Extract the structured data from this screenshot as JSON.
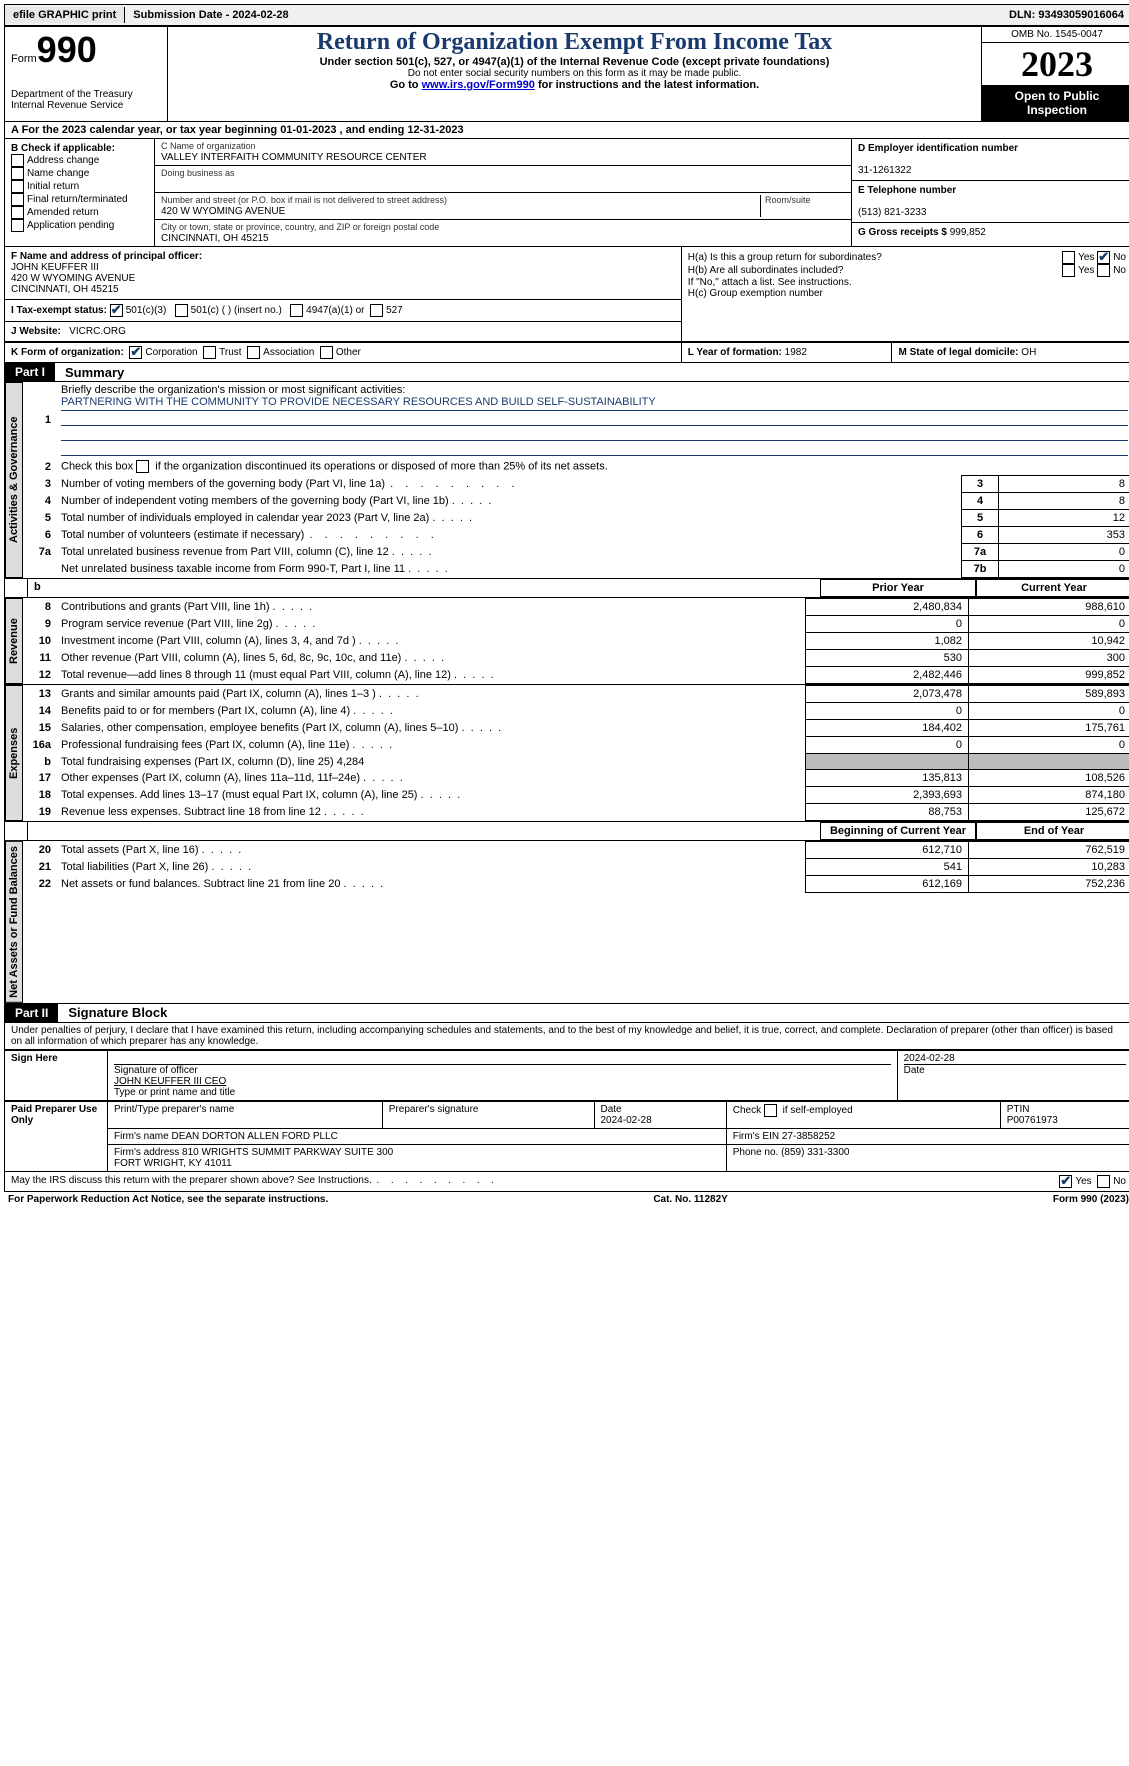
{
  "topbar": {
    "efile": "efile GRAPHIC print",
    "submission_label": "Submission Date - 2024-02-28",
    "dln_label": "DLN: 93493059016064"
  },
  "header": {
    "form_label": "Form",
    "form_num": "990",
    "dept": "Department of the Treasury",
    "irs": "Internal Revenue Service",
    "title": "Return of Organization Exempt From Income Tax",
    "subtitle": "Under section 501(c), 527, or 4947(a)(1) of the Internal Revenue Code (except private foundations)",
    "ssn_note": "Do not enter social security numbers on this form as it may be made public.",
    "goto_pre": "Go to ",
    "goto_link": "www.irs.gov/Form990",
    "goto_post": " for instructions and the latest information.",
    "omb": "OMB No. 1545-0047",
    "year": "2023",
    "open": "Open to Public Inspection"
  },
  "section_a": {
    "text": "A For the 2023 calendar year, or tax year beginning 01-01-2023    , and ending 12-31-2023"
  },
  "box_b": {
    "header": "B Check if applicable:",
    "items": [
      "Address change",
      "Name change",
      "Initial return",
      "Final return/terminated",
      "Amended return",
      "Application pending"
    ]
  },
  "box_c": {
    "name_lbl": "C Name of organization",
    "name": "VALLEY INTERFAITH COMMUNITY RESOURCE CENTER",
    "dba_lbl": "Doing business as",
    "street_lbl": "Number and street (or P.O. box if mail is not delivered to street address)",
    "room_lbl": "Room/suite",
    "street": "420 W WYOMING AVENUE",
    "city_lbl": "City or town, state or province, country, and ZIP or foreign postal code",
    "city": "CINCINNATI, OH  45215"
  },
  "box_d": {
    "ein_lbl": "D Employer identification number",
    "ein": "31-1261322",
    "tel_lbl": "E Telephone number",
    "tel": "(513) 821-3233",
    "gross_lbl": "G Gross receipts $ ",
    "gross": "999,852"
  },
  "box_f": {
    "lbl": "F  Name and address of principal officer:",
    "name": "JOHN KEUFFER III",
    "addr1": "420 W WYOMING AVENUE",
    "addr2": "CINCINNATI, OH  45215"
  },
  "box_h": {
    "a_lbl": "H(a)  Is this a group return for subordinates?",
    "b_lbl": "H(b)  Are all subordinates included?",
    "b_note": "If \"No,\" attach a list. See instructions.",
    "c_lbl": "H(c)  Group exemption number "
  },
  "row_i": {
    "lbl": "I    Tax-exempt status:",
    "opt1": "501(c)(3)",
    "opt2": "501(c) (   ) (insert no.)",
    "opt3": "4947(a)(1) or",
    "opt4": "527"
  },
  "row_j": {
    "lbl": "J    Website: ",
    "val": "VICRC.ORG"
  },
  "row_k": {
    "lbl": "K Form of organization:",
    "opts": [
      "Corporation",
      "Trust",
      "Association",
      "Other"
    ],
    "l_lbl": "L Year of formation: ",
    "l_val": "1982",
    "m_lbl": "M State of legal domicile: ",
    "m_val": "OH"
  },
  "part1": {
    "tag": "Part I",
    "title": "Summary"
  },
  "vtabs": {
    "gov": "Activities & Governance",
    "rev": "Revenue",
    "exp": "Expenses",
    "net": "Net Assets or Fund Balances"
  },
  "governance": {
    "l1_lbl": "Briefly describe the organization's mission or most significant activities:",
    "l1_val": "PARTNERING WITH THE COMMUNITY TO PROVIDE NECESSARY RESOURCES AND BUILD SELF-SUSTAINABILITY",
    "l2": "Check this box        if the organization discontinued its operations or disposed of more than 25% of its net assets.",
    "rows": [
      {
        "n": "3",
        "t": "Number of voting members of the governing body (Part VI, line 1a)",
        "c": "3",
        "v": "8"
      },
      {
        "n": "4",
        "t": "Number of independent voting members of the governing body (Part VI, line 1b)",
        "c": "4",
        "v": "8"
      },
      {
        "n": "5",
        "t": "Total number of individuals employed in calendar year 2023 (Part V, line 2a)",
        "c": "5",
        "v": "12"
      },
      {
        "n": "6",
        "t": "Total number of volunteers (estimate if necessary)",
        "c": "6",
        "v": "353"
      },
      {
        "n": "7a",
        "t": "Total unrelated business revenue from Part VIII, column (C), line 12",
        "c": "7a",
        "v": "0"
      },
      {
        "n": "",
        "t": "Net unrelated business taxable income from Form 990-T, Part I, line 11",
        "c": "7b",
        "v": "0"
      }
    ]
  },
  "fin_hdr": {
    "b": "b",
    "prior": "Prior Year",
    "curr": "Current Year",
    "boy": "Beginning of Current Year",
    "eoy": "End of Year"
  },
  "revenue": [
    {
      "n": "8",
      "t": "Contributions and grants (Part VIII, line 1h)",
      "p": "2,480,834",
      "c": "988,610"
    },
    {
      "n": "9",
      "t": "Program service revenue (Part VIII, line 2g)",
      "p": "0",
      "c": "0"
    },
    {
      "n": "10",
      "t": "Investment income (Part VIII, column (A), lines 3, 4, and 7d )",
      "p": "1,082",
      "c": "10,942"
    },
    {
      "n": "11",
      "t": "Other revenue (Part VIII, column (A), lines 5, 6d, 8c, 9c, 10c, and 11e)",
      "p": "530",
      "c": "300"
    },
    {
      "n": "12",
      "t": "Total revenue—add lines 8 through 11 (must equal Part VIII, column (A), line 12)",
      "p": "2,482,446",
      "c": "999,852"
    }
  ],
  "expenses": [
    {
      "n": "13",
      "t": "Grants and similar amounts paid (Part IX, column (A), lines 1–3 )",
      "p": "2,073,478",
      "c": "589,893"
    },
    {
      "n": "14",
      "t": "Benefits paid to or for members (Part IX, column (A), line 4)",
      "p": "0",
      "c": "0"
    },
    {
      "n": "15",
      "t": "Salaries, other compensation, employee benefits (Part IX, column (A), lines 5–10)",
      "p": "184,402",
      "c": "175,761"
    },
    {
      "n": "16a",
      "t": "Professional fundraising fees (Part IX, column (A), line 11e)",
      "p": "0",
      "c": "0"
    },
    {
      "n": "b",
      "t": "Total fundraising expenses (Part IX, column (D), line 25) 4,284",
      "p": "",
      "c": "",
      "gray": true
    },
    {
      "n": "17",
      "t": "Other expenses (Part IX, column (A), lines 11a–11d, 11f–24e)",
      "p": "135,813",
      "c": "108,526"
    },
    {
      "n": "18",
      "t": "Total expenses. Add lines 13–17 (must equal Part IX, column (A), line 25)",
      "p": "2,393,693",
      "c": "874,180"
    },
    {
      "n": "19",
      "t": "Revenue less expenses. Subtract line 18 from line 12",
      "p": "88,753",
      "c": "125,672"
    }
  ],
  "netassets": [
    {
      "n": "20",
      "t": "Total assets (Part X, line 16)",
      "p": "612,710",
      "c": "762,519"
    },
    {
      "n": "21",
      "t": "Total liabilities (Part X, line 26)",
      "p": "541",
      "c": "10,283"
    },
    {
      "n": "22",
      "t": "Net assets or fund balances. Subtract line 21 from line 20",
      "p": "612,169",
      "c": "752,236"
    }
  ],
  "part2": {
    "tag": "Part II",
    "title": "Signature Block",
    "decl": "Under penalties of perjury, I declare that I have examined this return, including accompanying schedules and statements, and to the best of my knowledge and belief, it is true, correct, and complete. Declaration of preparer (other than officer) is based on all information of which preparer has any knowledge."
  },
  "sign": {
    "here": "Sign Here",
    "sig_lbl": "Signature of officer",
    "sig_name": "JOHN KEUFFER III CEO",
    "date_lbl": "Date",
    "date": "2024-02-28",
    "type_lbl": "Type or print name and title"
  },
  "paid": {
    "title": "Paid Preparer Use Only",
    "name_lbl": "Print/Type preparer's name",
    "sig_lbl": "Preparer's signature",
    "date_lbl": "Date",
    "date": "2024-02-28",
    "self_lbl": "Check         if self-employed",
    "ptin_lbl": "PTIN",
    "ptin": "P00761973",
    "firm_lbl": "Firm's name   ",
    "firm": "DEAN DORTON ALLEN FORD PLLC",
    "ein_lbl": "Firm's EIN ",
    "ein": "27-3858252",
    "addr_lbl": "Firm's address ",
    "addr": "810 WRIGHTS SUMMIT PARKWAY SUITE 300\nFORT WRIGHT, KY  41011",
    "phone_lbl": "Phone no. ",
    "phone": "(859) 331-3300",
    "discuss": "May the IRS discuss this return with the preparer shown above? See Instructions."
  },
  "footer": {
    "left": "For Paperwork Reduction Act Notice, see the separate instructions.",
    "mid": "Cat. No. 11282Y",
    "right": "Form 990 (2023)"
  },
  "yes": "Yes",
  "no": "No"
}
